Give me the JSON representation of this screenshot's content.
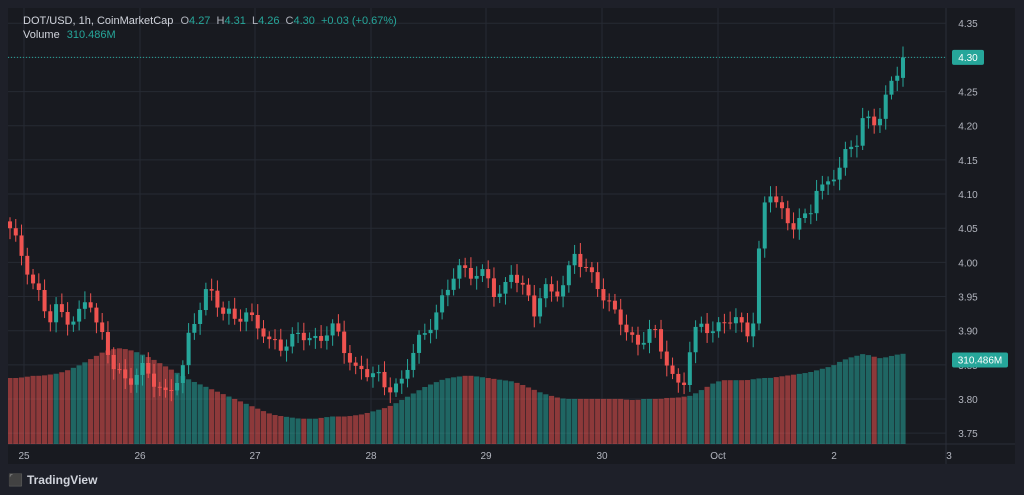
{
  "legend": {
    "symbol": "DOT/USD, 1h, CoinMarketCap",
    "open_k": "O",
    "open": "4.27",
    "high_k": "H",
    "high": "4.31",
    "low_k": "L",
    "low": "4.26",
    "close_k": "C",
    "close": "4.30",
    "change": "+0.03 (+0.67%)",
    "volume_label": "Volume",
    "volume_value": "310.486M"
  },
  "price_badge": "4.30",
  "volume_badge": "310.486M",
  "brand": "TradingView",
  "colors": {
    "up": "#26a69a",
    "down": "#ef5350",
    "bg": "#181a20",
    "grid": "#262a33",
    "axis_text": "#b2b5be"
  },
  "chart_data": {
    "type": "candlestick",
    "y_ticks": [
      "4.35",
      "4.30",
      "4.25",
      "4.20",
      "4.15",
      "4.10",
      "4.05",
      "4.00",
      "3.95",
      "3.90",
      "3.85",
      "3.80",
      "3.75"
    ],
    "y_range": [
      3.74,
      4.365
    ],
    "x_ticks": [
      "25",
      "26",
      "27",
      "28",
      "29",
      "30",
      "Oct",
      "2",
      "3"
    ],
    "last_price": 4.3,
    "price_path": [
      4.05,
      4.02,
      3.99,
      3.96,
      3.95,
      3.92,
      3.94,
      3.92,
      3.91,
      3.92,
      3.95,
      3.91,
      3.89,
      3.86,
      3.84,
      3.82,
      3.83,
      3.84,
      3.83,
      3.82,
      3.81,
      3.83,
      3.84,
      3.9,
      3.92,
      3.95,
      3.96,
      3.93,
      3.93,
      3.92,
      3.92,
      3.91,
      3.9,
      3.88,
      3.89,
      3.88,
      3.89,
      3.9,
      3.88,
      3.88,
      3.89,
      3.91,
      3.9,
      3.87,
      3.84,
      3.84,
      3.83,
      3.83,
      3.82,
      3.82,
      3.83,
      3.86,
      3.88,
      3.89,
      3.91,
      3.94,
      3.97,
      4.0,
      3.99,
      3.98,
      3.98,
      3.97,
      3.95,
      3.96,
      3.99,
      3.98,
      3.95,
      3.92,
      3.96,
      3.95,
      3.96,
      3.98,
      4.02,
      4.0,
      3.98,
      3.96,
      3.94,
      3.93,
      3.92,
      3.9,
      3.88,
      3.89,
      3.9,
      3.87,
      3.85,
      3.82,
      3.83,
      3.89,
      3.91,
      3.9,
      3.89,
      3.91,
      3.92,
      3.92,
      3.9,
      3.92,
      4.07,
      4.1,
      4.08,
      4.06,
      4.06,
      4.07,
      4.07,
      4.11,
      4.1,
      4.12,
      4.14,
      4.17,
      4.18,
      4.22,
      4.2,
      4.21,
      4.24,
      4.27,
      4.3
    ],
    "volume_path": [
      0.6,
      0.6,
      0.61,
      0.62,
      0.62,
      0.63,
      0.64,
      0.66,
      0.69,
      0.72,
      0.76,
      0.8,
      0.84,
      0.86,
      0.87,
      0.86,
      0.84,
      0.81,
      0.78,
      0.74,
      0.7,
      0.66,
      0.62,
      0.58,
      0.55,
      0.52,
      0.49,
      0.46,
      0.43,
      0.4,
      0.37,
      0.34,
      0.31,
      0.28,
      0.26,
      0.25,
      0.24,
      0.23,
      0.23,
      0.23,
      0.24,
      0.25,
      0.25,
      0.25,
      0.26,
      0.27,
      0.29,
      0.31,
      0.33,
      0.36,
      0.4,
      0.44,
      0.48,
      0.52,
      0.55,
      0.58,
      0.6,
      0.61,
      0.62,
      0.62,
      0.61,
      0.6,
      0.59,
      0.58,
      0.57,
      0.55,
      0.52,
      0.49,
      0.46,
      0.44,
      0.42,
      0.41,
      0.41,
      0.41,
      0.41,
      0.41,
      0.41,
      0.41,
      0.41,
      0.4,
      0.4,
      0.41,
      0.41,
      0.41,
      0.42,
      0.42,
      0.43,
      0.44,
      0.48,
      0.52,
      0.56,
      0.58,
      0.58,
      0.58,
      0.58,
      0.59,
      0.6,
      0.6,
      0.61,
      0.62,
      0.63,
      0.64,
      0.65,
      0.67,
      0.69,
      0.71,
      0.75,
      0.78,
      0.8,
      0.82,
      0.8,
      0.78,
      0.79,
      0.81,
      0.82
    ]
  }
}
